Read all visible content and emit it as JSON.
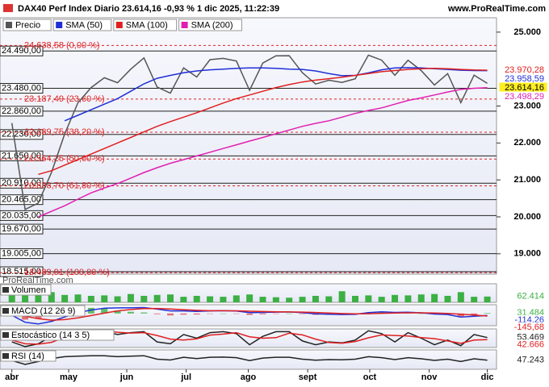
{
  "chart_data": {
    "type": "line",
    "title": "DAX40 Perf Index Diario 23.614,16 -0,93 % 1 dic 2025, 11:22:39",
    "site": "www.ProRealTime.com",
    "watermark": "ProRealTime.com",
    "xlim": [
      -0.9,
      36.7
    ],
    "xticks": [
      {
        "value": 0,
        "label": "abr"
      },
      {
        "value": 4.3,
        "label": "may"
      },
      {
        "value": 8.7,
        "label": "jun"
      },
      {
        "value": 13.2,
        "label": "jul"
      },
      {
        "value": 17.9,
        "label": "ago"
      },
      {
        "value": 22.4,
        "label": "sept"
      },
      {
        "value": 27.1,
        "label": "oct"
      },
      {
        "value": 31.6,
        "label": "nov"
      },
      {
        "value": 36,
        "label": "dic"
      }
    ],
    "ylim": [
      18450,
      25390
    ],
    "yticks": [
      {
        "value": 25000,
        "label": "25.000"
      },
      {
        "value": 23000,
        "label": "23.000"
      },
      {
        "value": 22000,
        "label": "22.000"
      },
      {
        "value": 21000,
        "label": "21.000"
      },
      {
        "value": 20000,
        "label": "20.000"
      },
      {
        "value": 19000,
        "label": "19.000"
      }
    ],
    "levels": [
      {
        "value": 24490,
        "label": "24.490,00"
      },
      {
        "value": 23480,
        "label": "23.480,00"
      },
      {
        "value": 22860,
        "label": "22.860,00"
      },
      {
        "value": 22230,
        "label": "22.230,00"
      },
      {
        "value": 21650,
        "label": "21.650,00"
      },
      {
        "value": 20910,
        "label": "20.910,00"
      },
      {
        "value": 20465,
        "label": "20.465,00"
      },
      {
        "value": 20035,
        "label": "20.035,00"
      },
      {
        "value": 19670,
        "label": "19.670,00"
      },
      {
        "value": 19005,
        "label": "19.005,00"
      },
      {
        "value": 18515,
        "label": "18.515,00"
      }
    ],
    "fib_levels": [
      {
        "value": 24638.58,
        "label": "24.638,58 (0,00 %)"
      },
      {
        "value": 23187.49,
        "label": "23.187,49 (23,60 %)"
      },
      {
        "value": 22289.75,
        "label": "22.289,75 (38,20 %)"
      },
      {
        "value": 21564.25,
        "label": "21.564,25 (50,00 %)"
      },
      {
        "value": 20838.7,
        "label": "20.838,70 (61,80 %)"
      },
      {
        "value": 18489.91,
        "label": "18.489,91 (100,00 %)"
      }
    ],
    "series": [
      {
        "name": "Precio",
        "color": "#555555",
        "last_label": "23.614,16",
        "values": [
          22540,
          20200,
          20374,
          21205,
          22242,
          23087,
          23499,
          23767,
          23630,
          23997,
          24304,
          23516,
          23350,
          24033,
          23787,
          24255,
          24290,
          24218,
          23426,
          24163,
          24359,
          24363,
          23902,
          23597,
          23698,
          23639,
          23739,
          24378,
          24241,
          23831,
          24240,
          23958,
          23570,
          23877,
          23091,
          23836,
          23614.16
        ]
      },
      {
        "name": "SMA (50)",
        "color": "#1f2fd6",
        "last_label": "23.958,59",
        "values": [
          null,
          null,
          null,
          null,
          22600,
          22750,
          22900,
          23050,
          23200,
          23400,
          23600,
          23750,
          23830,
          23900,
          23950,
          23980,
          24000,
          24020,
          24030,
          24030,
          24020,
          24000,
          23990,
          23950,
          23880,
          23820,
          23830,
          23900,
          23980,
          24030,
          24040,
          24030,
          24010,
          23990,
          23970,
          23960,
          23958.59
        ]
      },
      {
        "name": "SMA (100)",
        "color": "#e02020",
        "last_label": "23.970,28",
        "values": [
          null,
          null,
          21150,
          21250,
          21400,
          21550,
          21700,
          21850,
          22000,
          22150,
          22300,
          22450,
          22580,
          22700,
          22820,
          22950,
          23080,
          23200,
          23300,
          23400,
          23500,
          23580,
          23650,
          23700,
          23740,
          23780,
          23830,
          23880,
          23930,
          23960,
          23990,
          24010,
          24020,
          24010,
          23990,
          23975,
          23970.28
        ]
      },
      {
        "name": "SMA (200)",
        "color": "#e020b0",
        "last_label": "23.498,29",
        "values": [
          null,
          null,
          20000,
          20150,
          20300,
          20480,
          20650,
          20780,
          20900,
          21050,
          21200,
          21330,
          21450,
          21550,
          21650,
          21750,
          21850,
          21950,
          22050,
          22150,
          22250,
          22350,
          22450,
          22530,
          22600,
          22700,
          22800,
          22880,
          22950,
          23050,
          23150,
          23220,
          23300,
          23380,
          23450,
          23480,
          23498.29
        ]
      }
    ],
    "panes": [
      {
        "type": "bar",
        "title": "Volumen",
        "ylim": [
          0,
          200000
        ],
        "series": [
          {
            "color": "#3cb043",
            "style": "bar",
            "last_label": "62.414",
            "values": [
              90000,
              180000,
              150000,
              110000,
              80000,
              85000,
              70000,
              75000,
              65000,
              90000,
              70000,
              80000,
              85000,
              60000,
              70000,
              65000,
              60000,
              75000,
              85000,
              60000,
              55000,
              50000,
              60000,
              70000,
              65000,
              120000,
              70000,
              75000,
              60000,
              80000,
              75000,
              85000,
              90000,
              70000,
              110000,
              60000,
              62414
            ]
          }
        ]
      },
      {
        "type": "line",
        "title": "MACD (12 26 9)",
        "ylim": [
          -700,
          500
        ],
        "series": [
          {
            "color": "#3cb043",
            "style": "bar",
            "last_label": "31.484",
            "values": [
              -50,
              -350,
              -300,
              -70,
              150,
              300,
              320,
              280,
              170,
              100,
              60,
              -40,
              -110,
              -70,
              -60,
              -10,
              0,
              -15,
              -80,
              -50,
              -15,
              0,
              -30,
              -75,
              -65,
              -55,
              -30,
              60,
              90,
              35,
              30,
              0,
              -55,
              -65,
              -160,
              -70,
              31.484
            ]
          },
          {
            "color": "#1f2fd6",
            "style": "line",
            "last_label": "-114,26",
            "values": [
              -100,
              -500,
              -600,
              -450,
              -200,
              50,
              200,
              300,
              320,
              330,
              340,
              250,
              150,
              150,
              120,
              150,
              160,
              140,
              50,
              60,
              80,
              90,
              50,
              -20,
              -40,
              -60,
              -50,
              50,
              100,
              60,
              70,
              40,
              -30,
              -60,
              -200,
              -160,
              -114.26
            ]
          },
          {
            "color": "#e02020",
            "style": "line",
            "last_label": "-145,68",
            "values": [
              -50,
              -150,
              -300,
              -380,
              -350,
              -250,
              -120,
              20,
              150,
              230,
              280,
              290,
              260,
              220,
              180,
              160,
              160,
              155,
              130,
              110,
              95,
              90,
              80,
              55,
              25,
              -5,
              -20,
              -10,
              10,
              25,
              40,
              40,
              25,
              5,
              -40,
              -90,
              -145.68
            ]
          }
        ]
      },
      {
        "type": "line",
        "title": "Estocástico (14 3 5)",
        "ylim": [
          0,
          100
        ],
        "series": [
          {
            "color": "#222222",
            "style": "line",
            "last_label": "53.469",
            "values": [
              30,
              5,
              20,
              60,
              90,
              95,
              90,
              85,
              70,
              80,
              85,
              30,
              20,
              70,
              50,
              80,
              85,
              75,
              15,
              60,
              85,
              85,
              35,
              15,
              30,
              25,
              40,
              90,
              75,
              30,
              80,
              50,
              15,
              40,
              10,
              70,
              53.469
            ]
          },
          {
            "color": "#e02020",
            "style": "line",
            "last_label": "42.666",
            "values": [
              40,
              20,
              18,
              28,
              55,
              80,
              92,
              90,
              82,
              78,
              80,
              65,
              45,
              40,
              47,
              67,
              72,
              80,
              58,
              50,
              53,
              77,
              68,
              45,
              27,
              23,
              32,
              52,
              68,
              65,
              62,
              53,
              48,
              35,
              22,
              40,
              42.666
            ]
          }
        ]
      },
      {
        "type": "line",
        "title": "RSI (14)",
        "ylim": [
          0,
          100
        ],
        "series": [
          {
            "color": "#222222",
            "style": "line",
            "last_label": "47.243",
            "values": [
              45,
              25,
              40,
              55,
              65,
              68,
              70,
              70,
              65,
              68,
              70,
              52,
              48,
              62,
              55,
              62,
              63,
              60,
              45,
              58,
              62,
              62,
              52,
              47,
              50,
              49,
              52,
              65,
              60,
              50,
              60,
              54,
              46,
              52,
              40,
              54,
              47.243
            ]
          }
        ]
      }
    ]
  }
}
